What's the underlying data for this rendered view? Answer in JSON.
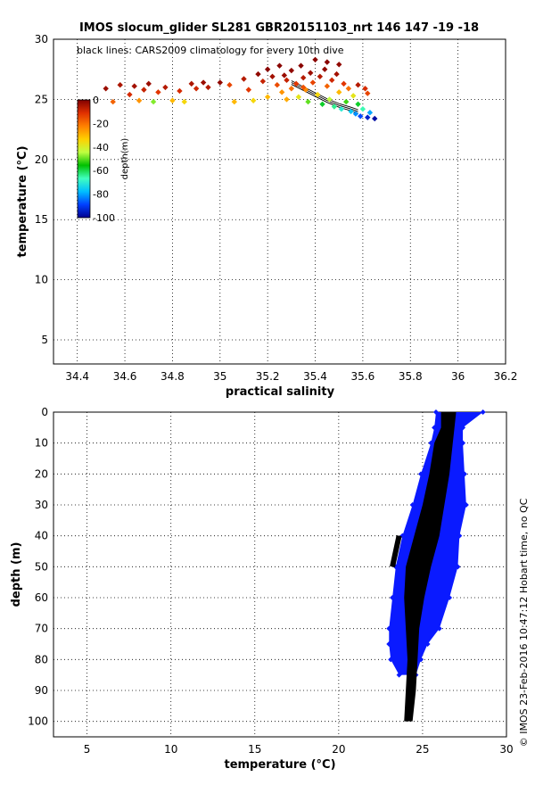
{
  "title": "IMOS slocum_glider SL281 GBR20151103_nrt 146  147  -19  -18",
  "credit": "© IMOS 23-Feb-2016 10:47:12 Hobart time, no QC",
  "colors": {
    "observations_depth": "#0a1aff",
    "climatology": "#000000",
    "colormap": [
      "#00008f",
      "#0040ff",
      "#00bfff",
      "#40ffbf",
      "#00c000",
      "#bfff40",
      "#ffd000",
      "#ff8000",
      "#e03000",
      "#800000"
    ]
  },
  "chart_data": [
    {
      "type": "scatter",
      "id": "ts",
      "xlabel": "practical salinity",
      "ylabel": "temperature (°C)",
      "xlim": [
        34.3,
        36.2
      ],
      "ylim": [
        3,
        30
      ],
      "xticks": [
        34.4,
        34.6,
        34.8,
        35,
        35.2,
        35.4,
        35.6,
        35.8,
        36,
        36.2
      ],
      "yticks": [
        5,
        10,
        15,
        20,
        25,
        30
      ],
      "grid": true,
      "annotation": "black lines: CARS2009 climatology for every 10th dive",
      "colorbar": {
        "label": "depth(m)",
        "range": [
          -100,
          0
        ],
        "ticks": [
          0,
          -20,
          -40,
          -60,
          -80,
          -100
        ]
      },
      "observations": [
        {
          "s": 34.52,
          "t": 25.9,
          "d": -3
        },
        {
          "s": 34.55,
          "t": 24.8,
          "d": -18
        },
        {
          "s": 34.58,
          "t": 26.2,
          "d": -5
        },
        {
          "s": 34.62,
          "t": 25.4,
          "d": -10
        },
        {
          "s": 34.64,
          "t": 26.1,
          "d": -4
        },
        {
          "s": 34.66,
          "t": 24.9,
          "d": -25
        },
        {
          "s": 34.68,
          "t": 25.8,
          "d": -8
        },
        {
          "s": 34.7,
          "t": 26.3,
          "d": -3
        },
        {
          "s": 34.72,
          "t": 24.8,
          "d": -48
        },
        {
          "s": 34.74,
          "t": 25.6,
          "d": -12
        },
        {
          "s": 34.77,
          "t": 26.0,
          "d": -6
        },
        {
          "s": 34.8,
          "t": 24.9,
          "d": -30
        },
        {
          "s": 34.83,
          "t": 25.7,
          "d": -10
        },
        {
          "s": 34.85,
          "t": 24.8,
          "d": -35
        },
        {
          "s": 34.88,
          "t": 26.3,
          "d": -5
        },
        {
          "s": 34.9,
          "t": 25.9,
          "d": -9
        },
        {
          "s": 34.93,
          "t": 26.4,
          "d": -3
        },
        {
          "s": 34.95,
          "t": 26.0,
          "d": -6
        },
        {
          "s": 35.0,
          "t": 26.4,
          "d": -2
        },
        {
          "s": 35.04,
          "t": 26.2,
          "d": -14
        },
        {
          "s": 35.06,
          "t": 24.8,
          "d": -30
        },
        {
          "s": 35.1,
          "t": 26.7,
          "d": -6
        },
        {
          "s": 35.12,
          "t": 25.8,
          "d": -12
        },
        {
          "s": 35.14,
          "t": 24.9,
          "d": -35
        },
        {
          "s": 35.16,
          "t": 27.1,
          "d": -2
        },
        {
          "s": 35.18,
          "t": 26.5,
          "d": -8
        },
        {
          "s": 35.2,
          "t": 25.2,
          "d": -30
        },
        {
          "s": 35.2,
          "t": 27.5,
          "d": -1
        },
        {
          "s": 35.22,
          "t": 26.9,
          "d": -4
        },
        {
          "s": 35.24,
          "t": 26.2,
          "d": -15
        },
        {
          "s": 35.26,
          "t": 25.6,
          "d": -25
        },
        {
          "s": 35.27,
          "t": 27.0,
          "d": -3
        },
        {
          "s": 35.28,
          "t": 26.6,
          "d": -8
        },
        {
          "s": 35.3,
          "t": 25.9,
          "d": -20
        },
        {
          "s": 35.3,
          "t": 27.4,
          "d": -2
        },
        {
          "s": 35.32,
          "t": 26.3,
          "d": -12
        },
        {
          "s": 35.33,
          "t": 25.2,
          "d": -38
        },
        {
          "s": 35.34,
          "t": 27.8,
          "d": -1
        },
        {
          "s": 35.35,
          "t": 26.8,
          "d": -6
        },
        {
          "s": 35.36,
          "t": 25.8,
          "d": -24
        },
        {
          "s": 35.37,
          "t": 24.8,
          "d": -50
        },
        {
          "s": 35.38,
          "t": 27.2,
          "d": -3
        },
        {
          "s": 35.39,
          "t": 26.4,
          "d": -14
        },
        {
          "s": 35.4,
          "t": 28.3,
          "d": -1
        },
        {
          "s": 35.41,
          "t": 25.4,
          "d": -35
        },
        {
          "s": 35.42,
          "t": 26.9,
          "d": -6
        },
        {
          "s": 35.43,
          "t": 24.6,
          "d": -58
        },
        {
          "s": 35.44,
          "t": 27.5,
          "d": -2
        },
        {
          "s": 35.45,
          "t": 26.1,
          "d": -18
        },
        {
          "s": 35.46,
          "t": 25.0,
          "d": -44
        },
        {
          "s": 35.47,
          "t": 26.6,
          "d": -9
        },
        {
          "s": 35.48,
          "t": 24.4,
          "d": -64
        },
        {
          "s": 35.49,
          "t": 27.1,
          "d": -4
        },
        {
          "s": 35.5,
          "t": 25.6,
          "d": -30
        },
        {
          "s": 35.51,
          "t": 24.2,
          "d": -70
        },
        {
          "s": 35.52,
          "t": 26.3,
          "d": -12
        },
        {
          "s": 35.53,
          "t": 24.8,
          "d": -52
        },
        {
          "s": 35.54,
          "t": 25.9,
          "d": -20
        },
        {
          "s": 35.55,
          "t": 24.0,
          "d": -76
        },
        {
          "s": 35.56,
          "t": 25.3,
          "d": -38
        },
        {
          "s": 35.57,
          "t": 23.8,
          "d": -82
        },
        {
          "s": 35.58,
          "t": 24.6,
          "d": -58
        },
        {
          "s": 35.59,
          "t": 23.6,
          "d": -88
        },
        {
          "s": 35.6,
          "t": 24.2,
          "d": -66
        },
        {
          "s": 35.61,
          "t": 25.9,
          "d": -10
        },
        {
          "s": 35.62,
          "t": 23.5,
          "d": -94
        },
        {
          "s": 35.63,
          "t": 23.9,
          "d": -80
        },
        {
          "s": 35.65,
          "t": 23.4,
          "d": -98
        },
        {
          "s": 35.58,
          "t": 26.2,
          "d": -6
        },
        {
          "s": 35.62,
          "t": 25.5,
          "d": -14
        },
        {
          "s": 35.25,
          "t": 27.8,
          "d": -1
        },
        {
          "s": 35.45,
          "t": 28.1,
          "d": -1
        },
        {
          "s": 35.5,
          "t": 27.9,
          "d": -2
        },
        {
          "s": 35.35,
          "t": 26.0,
          "d": -16
        },
        {
          "s": 35.28,
          "t": 25.0,
          "d": -28
        }
      ],
      "climatology": [
        {
          "s": 35.3,
          "t": 26.4
        },
        {
          "s": 35.35,
          "t": 25.9
        },
        {
          "s": 35.4,
          "t": 25.4
        },
        {
          "s": 35.45,
          "t": 24.9
        },
        {
          "s": 35.5,
          "t": 24.5
        },
        {
          "s": 35.55,
          "t": 24.2
        },
        {
          "s": 35.58,
          "t": 24.0
        }
      ]
    },
    {
      "type": "scatter",
      "id": "profile",
      "xlabel": "temperature (°C)",
      "ylabel": "depth (m)",
      "xlim": [
        3,
        30
      ],
      "ylim": [
        0,
        105
      ],
      "y_inverted": true,
      "xticks": [
        5,
        10,
        15,
        20,
        25,
        30
      ],
      "yticks": [
        0,
        10,
        20,
        30,
        40,
        50,
        60,
        70,
        80,
        90,
        100
      ],
      "grid": true,
      "observation_envelope": [
        {
          "d": 0,
          "tmin": 25.8,
          "tmax": 28.6
        },
        {
          "d": 5,
          "tmin": 25.7,
          "tmax": 27.4
        },
        {
          "d": 10,
          "tmin": 25.5,
          "tmax": 27.4
        },
        {
          "d": 20,
          "tmin": 24.9,
          "tmax": 27.5
        },
        {
          "d": 30,
          "tmin": 24.4,
          "tmax": 27.6
        },
        {
          "d": 40,
          "tmin": 23.8,
          "tmax": 27.2
        },
        {
          "d": 50,
          "tmin": 23.4,
          "tmax": 27.1
        },
        {
          "d": 60,
          "tmin": 23.2,
          "tmax": 26.6
        },
        {
          "d": 70,
          "tmin": 23.0,
          "tmax": 26.0
        },
        {
          "d": 75,
          "tmin": 23.0,
          "tmax": 25.3
        },
        {
          "d": 80,
          "tmin": 23.1,
          "tmax": 24.9
        },
        {
          "d": 85,
          "tmin": 23.6,
          "tmax": 24.6
        }
      ],
      "climatology_envelope": [
        {
          "d": 0,
          "tmin": 26.1,
          "tmax": 27.0
        },
        {
          "d": 5,
          "tmin": 26.1,
          "tmax": 26.9
        },
        {
          "d": 10,
          "tmin": 25.7,
          "tmax": 26.8
        },
        {
          "d": 20,
          "tmin": 25.4,
          "tmax": 26.6
        },
        {
          "d": 30,
          "tmin": 25.0,
          "tmax": 26.3
        },
        {
          "d": 40,
          "tmin": 24.5,
          "tmax": 26.0
        },
        {
          "d": 50,
          "tmin": 24.0,
          "tmax": 25.5
        },
        {
          "d": 60,
          "tmin": 23.9,
          "tmax": 25.1
        },
        {
          "d": 70,
          "tmin": 24.0,
          "tmax": 24.8
        },
        {
          "d": 80,
          "tmin": 24.1,
          "tmax": 24.7
        },
        {
          "d": 90,
          "tmin": 24.0,
          "tmax": 24.6
        },
        {
          "d": 100,
          "tmin": 23.9,
          "tmax": 24.4
        }
      ],
      "climatology_tail": [
        {
          "d": 40,
          "t": 23.6
        },
        {
          "d": 45,
          "t": 23.4
        },
        {
          "d": 50,
          "t": 23.2
        }
      ]
    }
  ]
}
